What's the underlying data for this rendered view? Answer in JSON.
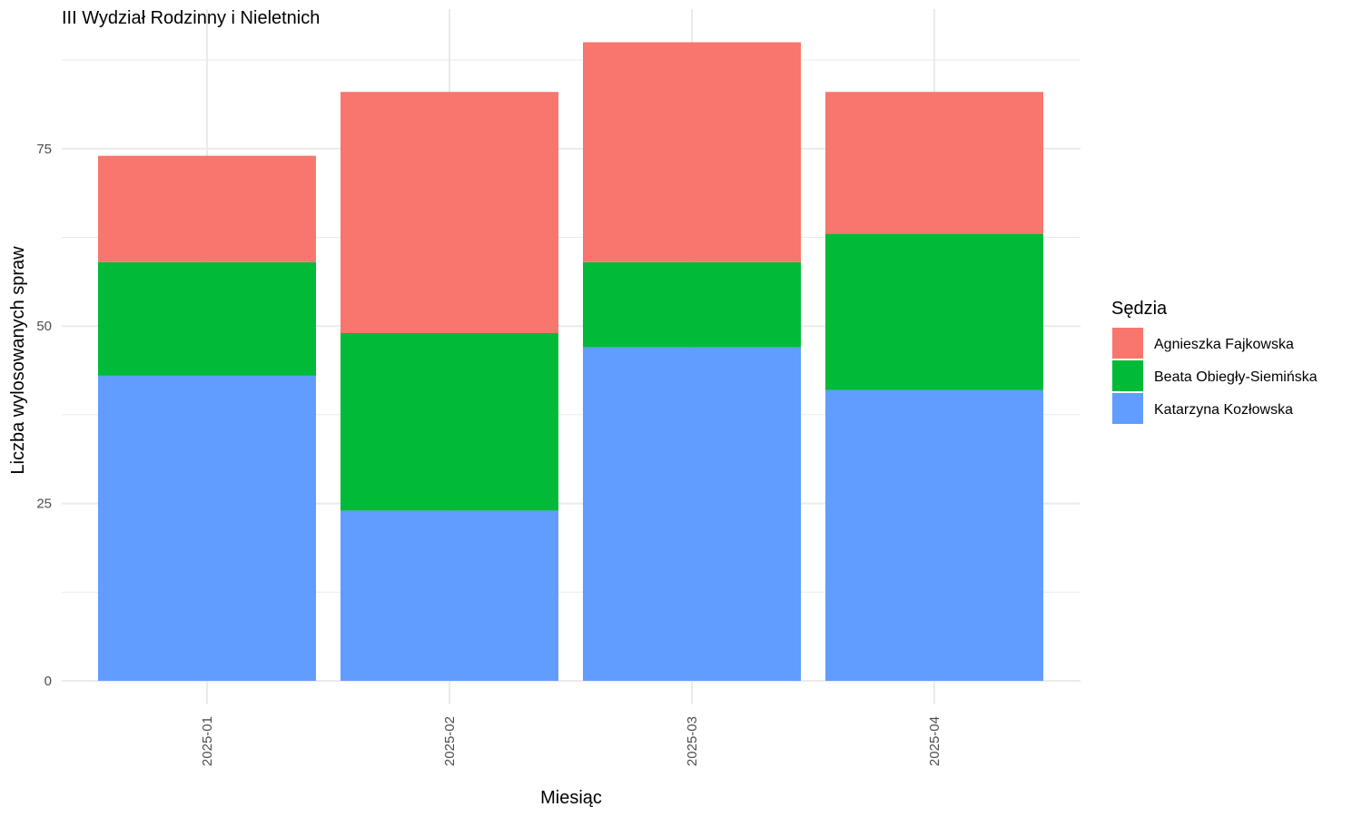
{
  "chart_data": {
    "type": "bar",
    "stacked": true,
    "title": "III Wydział Rodzinny i Nieletnich",
    "xlabel": "Miesiąc",
    "ylabel": "Liczba wylosowanych spraw",
    "categories": [
      "2025-01",
      "2025-02",
      "2025-03",
      "2025-04"
    ],
    "series": [
      {
        "name": "Katarzyna Kozłowska",
        "color": "#619CFF",
        "values": [
          43,
          24,
          47,
          41
        ]
      },
      {
        "name": "Beata Obiegły-Siemińska",
        "color": "#00BA38",
        "values": [
          16,
          25,
          12,
          22
        ]
      },
      {
        "name": "Agnieszka Fajkowska",
        "color": "#F8766D",
        "values": [
          15,
          34,
          31,
          20
        ]
      }
    ],
    "yticks": [
      0,
      25,
      50,
      75
    ],
    "ylim": [
      0,
      90
    ],
    "grid": true,
    "legend": {
      "title": "Sędzia",
      "position": "right",
      "order": [
        "Agnieszka Fajkowska",
        "Beata Obiegły-Siemińska",
        "Katarzyna Kozłowska"
      ]
    }
  }
}
